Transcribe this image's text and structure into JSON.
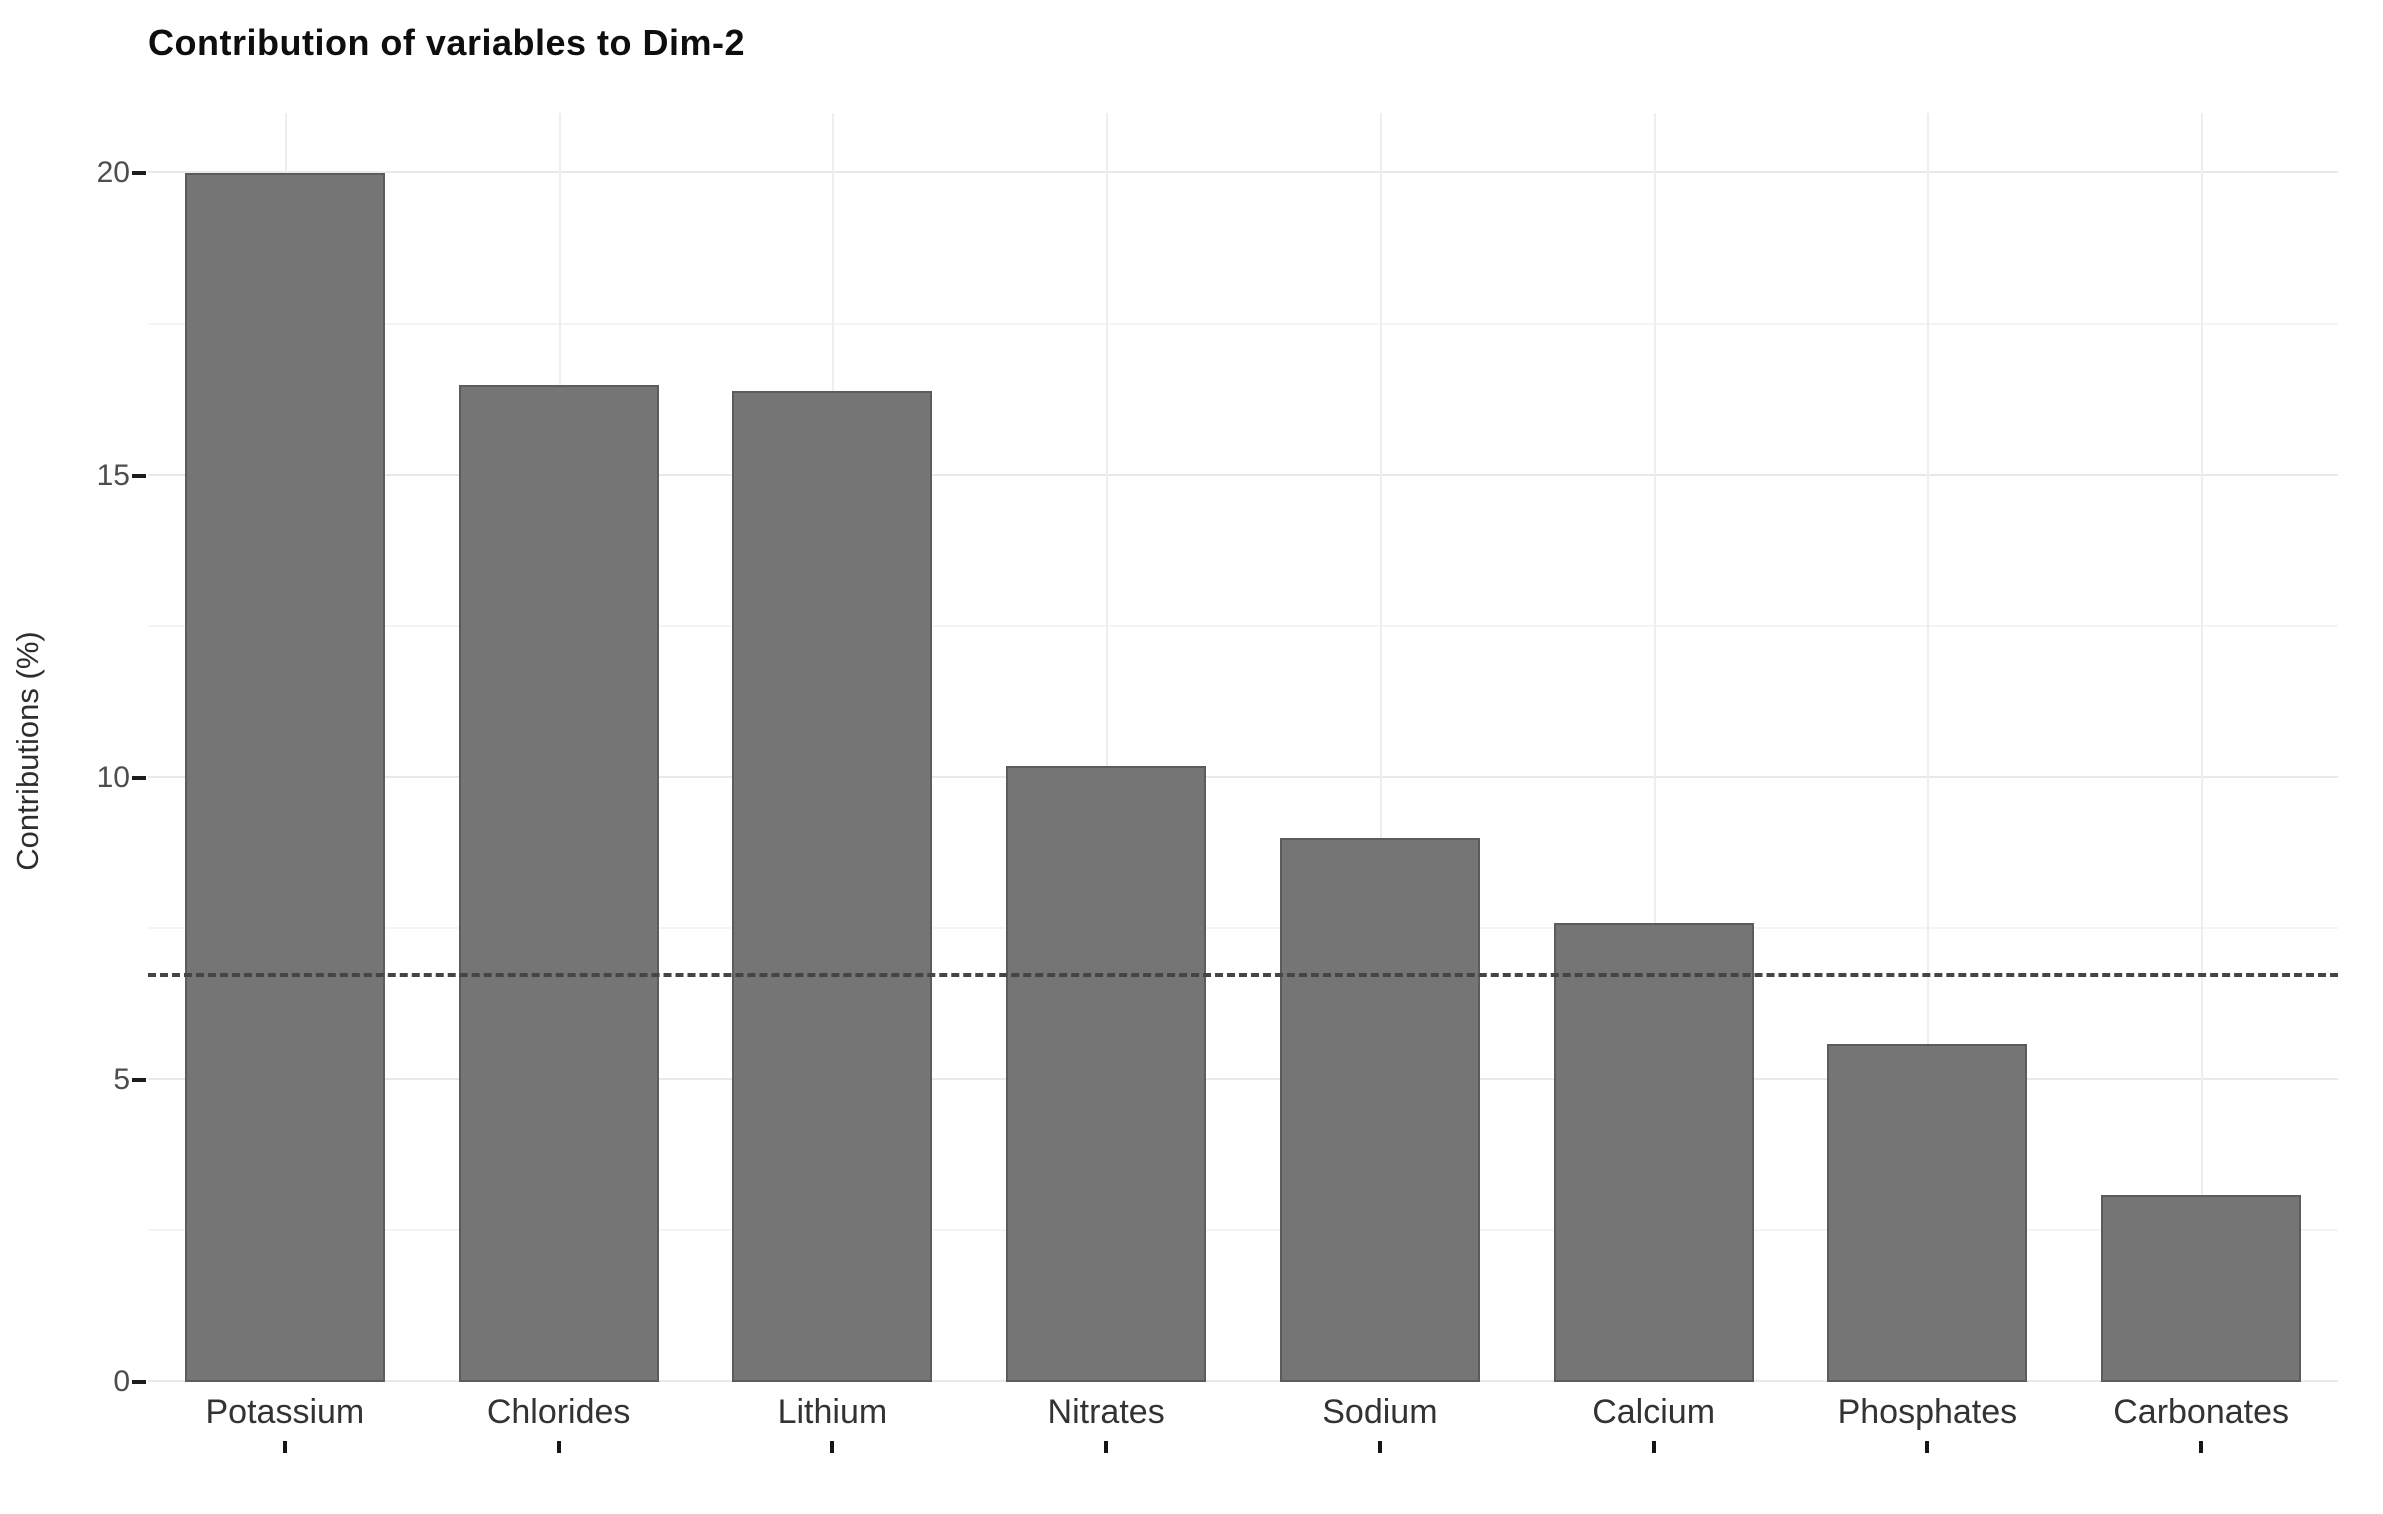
{
  "title": "Contribution of variables to Dim-2",
  "chart_data": {
    "type": "bar",
    "title": "Contribution of variables to Dim-2",
    "xlabel": "",
    "ylabel": "Contributions (%)",
    "categories": [
      "Potassium",
      "Chlorides",
      "Lithium",
      "Nitrates",
      "Sodium",
      "Calcium",
      "Phosphates",
      "Carbonates"
    ],
    "values": [
      20.0,
      16.5,
      16.4,
      10.2,
      9.0,
      7.6,
      5.6,
      3.1
    ],
    "ylim": [
      0,
      21
    ],
    "yticks_major": [
      0,
      5,
      10,
      15,
      20
    ],
    "yticks_minor": [
      2.5,
      7.5,
      12.5,
      17.5
    ],
    "reference_line": {
      "value": 6.7,
      "style": "dashed"
    },
    "grid": "major+minor horizontal, major vertical at category centers",
    "legend_position": "none",
    "bar_color": "#757575",
    "bar_border_color": "#5c5c5c",
    "reference_line_color": "#454545",
    "grid_major_color": "#e9e9e9",
    "grid_minor_color": "#f4f4f4",
    "axis_text_color": "#4d4d4d",
    "title_color": "#0e0e0e"
  }
}
